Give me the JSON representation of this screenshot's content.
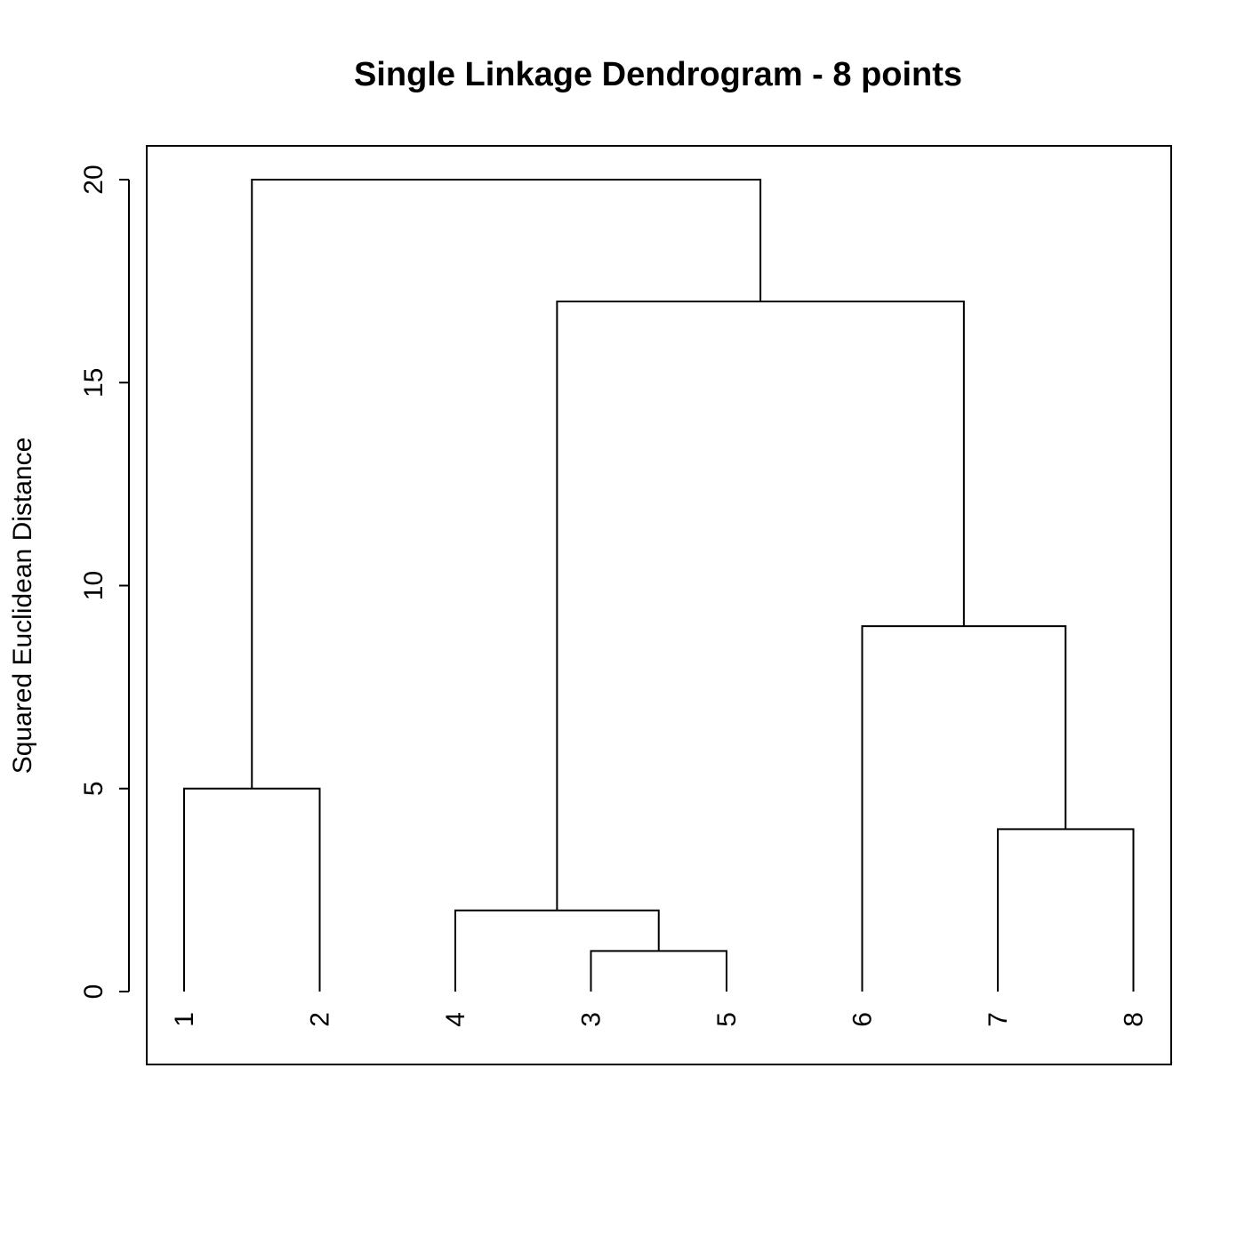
{
  "chart_data": {
    "type": "dendrogram",
    "title": "Single Linkage Dendrogram - 8 points",
    "xlabel": "",
    "ylabel": "Squared Euclidean Distance",
    "ylim": [
      0,
      20
    ],
    "yticks": [
      0,
      5,
      10,
      15,
      20
    ],
    "leaf_order": [
      "1",
      "2",
      "4",
      "3",
      "5",
      "6",
      "7",
      "8"
    ],
    "merges": [
      {
        "left": "3",
        "right": "5",
        "height": 1
      },
      {
        "left": "4",
        "right": "3+5",
        "height": 2
      },
      {
        "left": "7",
        "right": "8",
        "height": 4
      },
      {
        "left": "1",
        "right": "2",
        "height": 5
      },
      {
        "left": "6",
        "right": "7+8",
        "height": 9
      },
      {
        "left": "4+3+5",
        "right": "6+7+8",
        "height": 17
      },
      {
        "left": "1+2",
        "right": "4+3+5+6+7+8",
        "height": 20
      }
    ],
    "grid": false,
    "box": true
  }
}
